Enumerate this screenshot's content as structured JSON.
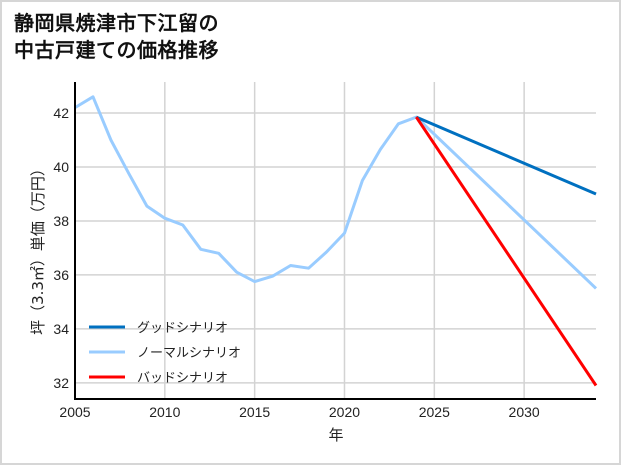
{
  "title": {
    "line1": "静岡県焼津市下江留の",
    "line2": "中古戸建ての価格推移"
  },
  "chart_data": {
    "type": "line",
    "title": "静岡県焼津市下江留の中古戸建ての価格推移",
    "xlabel": "年",
    "ylabel": "坪（3.3㎡）単価（万円）",
    "xlim": [
      2005,
      2034
    ],
    "ylim": [
      31.4,
      43.15
    ],
    "xticks": [
      2005,
      2010,
      2015,
      2020,
      2025,
      2030
    ],
    "yticks": [
      32,
      34,
      36,
      38,
      40,
      42
    ],
    "grid": true,
    "legend_position": "lower left",
    "series": [
      {
        "name": "グッドシナリオ",
        "color": "#0070c0",
        "x": [
          2024,
          2034
        ],
        "values": [
          41.85,
          39.0
        ]
      },
      {
        "name": "ノーマルシナリオ",
        "color": "#99ccff",
        "x": [
          2005,
          2006,
          2007,
          2008,
          2009,
          2010,
          2011,
          2012,
          2013,
          2014,
          2015,
          2016,
          2017,
          2018,
          2019,
          2020,
          2021,
          2022,
          2023,
          2024,
          2034
        ],
        "values": [
          42.2,
          42.6,
          41.0,
          39.75,
          38.55,
          38.1,
          37.85,
          36.95,
          36.8,
          36.1,
          35.75,
          35.95,
          36.35,
          36.25,
          36.85,
          37.55,
          39.5,
          40.65,
          41.6,
          41.85,
          35.5
        ]
      },
      {
        "name": "バッドシナリオ",
        "color": "#ff0000",
        "x": [
          2024,
          2034
        ],
        "values": [
          41.85,
          31.9
        ]
      }
    ]
  }
}
